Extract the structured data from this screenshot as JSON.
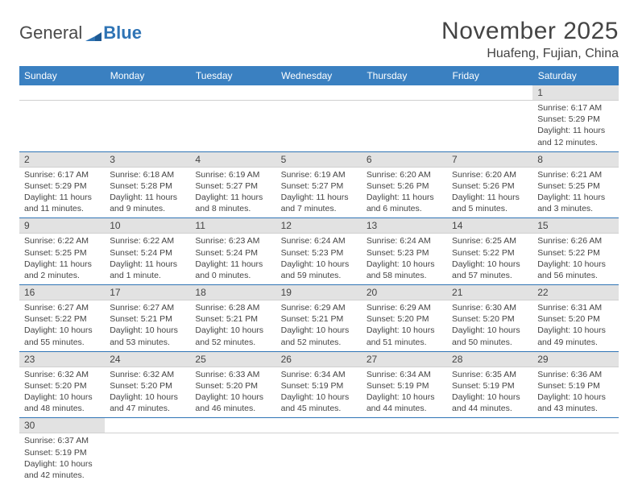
{
  "brand": {
    "part1": "General",
    "part2": "Blue"
  },
  "title": "November 2025",
  "location": "Huafeng, Fujian, China",
  "colors": {
    "header_bg": "#3a80c1",
    "header_fg": "#ffffff",
    "daynum_bg": "#e2e2e2",
    "rule": "#2f74b5",
    "text": "#444444",
    "page_bg": "#ffffff"
  },
  "weekdays": [
    "Sunday",
    "Monday",
    "Tuesday",
    "Wednesday",
    "Thursday",
    "Friday",
    "Saturday"
  ],
  "weeks": [
    [
      null,
      null,
      null,
      null,
      null,
      null,
      {
        "n": "1",
        "sr": "Sunrise: 6:17 AM",
        "ss": "Sunset: 5:29 PM",
        "d1": "Daylight: 11 hours",
        "d2": "and 12 minutes."
      }
    ],
    [
      {
        "n": "2",
        "sr": "Sunrise: 6:17 AM",
        "ss": "Sunset: 5:29 PM",
        "d1": "Daylight: 11 hours",
        "d2": "and 11 minutes."
      },
      {
        "n": "3",
        "sr": "Sunrise: 6:18 AM",
        "ss": "Sunset: 5:28 PM",
        "d1": "Daylight: 11 hours",
        "d2": "and 9 minutes."
      },
      {
        "n": "4",
        "sr": "Sunrise: 6:19 AM",
        "ss": "Sunset: 5:27 PM",
        "d1": "Daylight: 11 hours",
        "d2": "and 8 minutes."
      },
      {
        "n": "5",
        "sr": "Sunrise: 6:19 AM",
        "ss": "Sunset: 5:27 PM",
        "d1": "Daylight: 11 hours",
        "d2": "and 7 minutes."
      },
      {
        "n": "6",
        "sr": "Sunrise: 6:20 AM",
        "ss": "Sunset: 5:26 PM",
        "d1": "Daylight: 11 hours",
        "d2": "and 6 minutes."
      },
      {
        "n": "7",
        "sr": "Sunrise: 6:20 AM",
        "ss": "Sunset: 5:26 PM",
        "d1": "Daylight: 11 hours",
        "d2": "and 5 minutes."
      },
      {
        "n": "8",
        "sr": "Sunrise: 6:21 AM",
        "ss": "Sunset: 5:25 PM",
        "d1": "Daylight: 11 hours",
        "d2": "and 3 minutes."
      }
    ],
    [
      {
        "n": "9",
        "sr": "Sunrise: 6:22 AM",
        "ss": "Sunset: 5:25 PM",
        "d1": "Daylight: 11 hours",
        "d2": "and 2 minutes."
      },
      {
        "n": "10",
        "sr": "Sunrise: 6:22 AM",
        "ss": "Sunset: 5:24 PM",
        "d1": "Daylight: 11 hours",
        "d2": "and 1 minute."
      },
      {
        "n": "11",
        "sr": "Sunrise: 6:23 AM",
        "ss": "Sunset: 5:24 PM",
        "d1": "Daylight: 11 hours",
        "d2": "and 0 minutes."
      },
      {
        "n": "12",
        "sr": "Sunrise: 6:24 AM",
        "ss": "Sunset: 5:23 PM",
        "d1": "Daylight: 10 hours",
        "d2": "and 59 minutes."
      },
      {
        "n": "13",
        "sr": "Sunrise: 6:24 AM",
        "ss": "Sunset: 5:23 PM",
        "d1": "Daylight: 10 hours",
        "d2": "and 58 minutes."
      },
      {
        "n": "14",
        "sr": "Sunrise: 6:25 AM",
        "ss": "Sunset: 5:22 PM",
        "d1": "Daylight: 10 hours",
        "d2": "and 57 minutes."
      },
      {
        "n": "15",
        "sr": "Sunrise: 6:26 AM",
        "ss": "Sunset: 5:22 PM",
        "d1": "Daylight: 10 hours",
        "d2": "and 56 minutes."
      }
    ],
    [
      {
        "n": "16",
        "sr": "Sunrise: 6:27 AM",
        "ss": "Sunset: 5:22 PM",
        "d1": "Daylight: 10 hours",
        "d2": "and 55 minutes."
      },
      {
        "n": "17",
        "sr": "Sunrise: 6:27 AM",
        "ss": "Sunset: 5:21 PM",
        "d1": "Daylight: 10 hours",
        "d2": "and 53 minutes."
      },
      {
        "n": "18",
        "sr": "Sunrise: 6:28 AM",
        "ss": "Sunset: 5:21 PM",
        "d1": "Daylight: 10 hours",
        "d2": "and 52 minutes."
      },
      {
        "n": "19",
        "sr": "Sunrise: 6:29 AM",
        "ss": "Sunset: 5:21 PM",
        "d1": "Daylight: 10 hours",
        "d2": "and 52 minutes."
      },
      {
        "n": "20",
        "sr": "Sunrise: 6:29 AM",
        "ss": "Sunset: 5:20 PM",
        "d1": "Daylight: 10 hours",
        "d2": "and 51 minutes."
      },
      {
        "n": "21",
        "sr": "Sunrise: 6:30 AM",
        "ss": "Sunset: 5:20 PM",
        "d1": "Daylight: 10 hours",
        "d2": "and 50 minutes."
      },
      {
        "n": "22",
        "sr": "Sunrise: 6:31 AM",
        "ss": "Sunset: 5:20 PM",
        "d1": "Daylight: 10 hours",
        "d2": "and 49 minutes."
      }
    ],
    [
      {
        "n": "23",
        "sr": "Sunrise: 6:32 AM",
        "ss": "Sunset: 5:20 PM",
        "d1": "Daylight: 10 hours",
        "d2": "and 48 minutes."
      },
      {
        "n": "24",
        "sr": "Sunrise: 6:32 AM",
        "ss": "Sunset: 5:20 PM",
        "d1": "Daylight: 10 hours",
        "d2": "and 47 minutes."
      },
      {
        "n": "25",
        "sr": "Sunrise: 6:33 AM",
        "ss": "Sunset: 5:20 PM",
        "d1": "Daylight: 10 hours",
        "d2": "and 46 minutes."
      },
      {
        "n": "26",
        "sr": "Sunrise: 6:34 AM",
        "ss": "Sunset: 5:19 PM",
        "d1": "Daylight: 10 hours",
        "d2": "and 45 minutes."
      },
      {
        "n": "27",
        "sr": "Sunrise: 6:34 AM",
        "ss": "Sunset: 5:19 PM",
        "d1": "Daylight: 10 hours",
        "d2": "and 44 minutes."
      },
      {
        "n": "28",
        "sr": "Sunrise: 6:35 AM",
        "ss": "Sunset: 5:19 PM",
        "d1": "Daylight: 10 hours",
        "d2": "and 44 minutes."
      },
      {
        "n": "29",
        "sr": "Sunrise: 6:36 AM",
        "ss": "Sunset: 5:19 PM",
        "d1": "Daylight: 10 hours",
        "d2": "and 43 minutes."
      }
    ],
    [
      {
        "n": "30",
        "sr": "Sunrise: 6:37 AM",
        "ss": "Sunset: 5:19 PM",
        "d1": "Daylight: 10 hours",
        "d2": "and 42 minutes."
      },
      null,
      null,
      null,
      null,
      null,
      null
    ]
  ]
}
